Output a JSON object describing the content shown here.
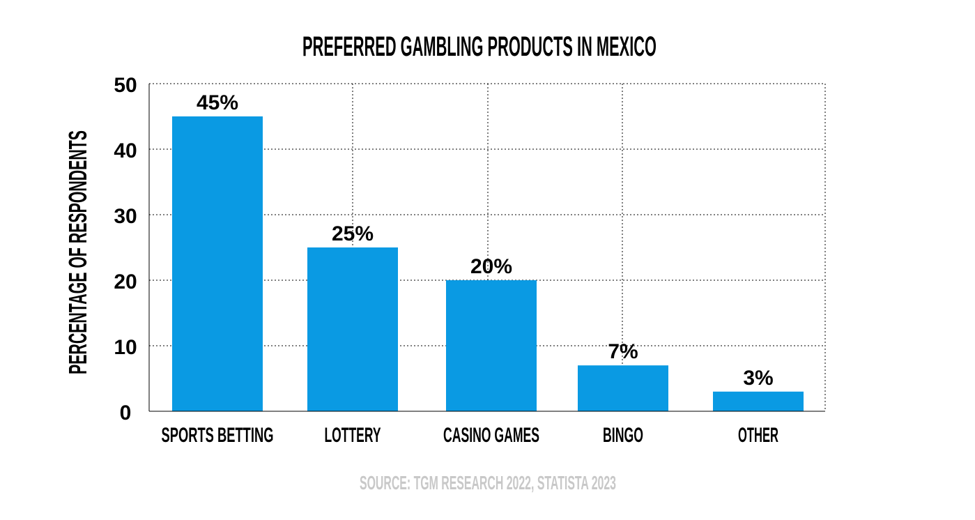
{
  "chart_data": {
    "type": "bar",
    "title": "PREFERRED GAMBLING PRODUCTS IN MEXICO",
    "xlabel": "",
    "ylabel": "PERCENTAGE OF RESPONDENTS",
    "categories": [
      "SPORTS BETTING",
      "LOTTERY",
      "CASINO GAMES",
      "BINGO",
      "OTHER"
    ],
    "values": [
      45,
      25,
      20,
      7,
      3
    ],
    "data_labels": [
      "45%",
      "25%",
      "20%",
      "7%",
      "3%"
    ],
    "ylim": [
      0,
      50
    ],
    "yticks": [
      0,
      10,
      20,
      30,
      40,
      50
    ],
    "grid": true,
    "legend": "none",
    "bar_color": "#0a9ae3",
    "source": "SOURCE: TGM RESEARCH 2022, STATISTA 2023"
  }
}
